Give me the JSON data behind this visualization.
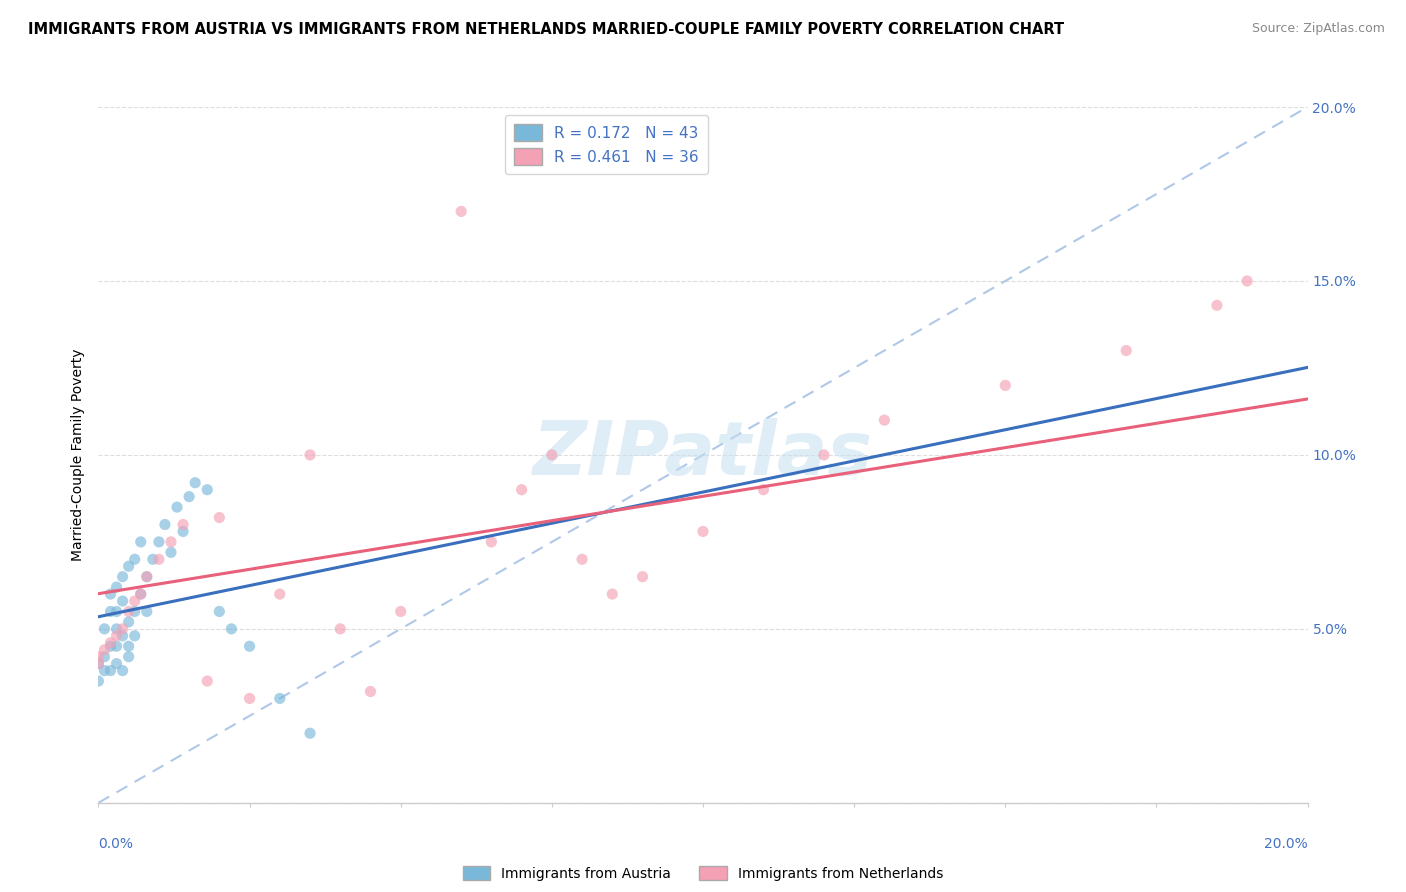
{
  "title": "IMMIGRANTS FROM AUSTRIA VS IMMIGRANTS FROM NETHERLANDS MARRIED-COUPLE FAMILY POVERTY CORRELATION CHART",
  "source": "Source: ZipAtlas.com",
  "ylabel": "Married-Couple Family Poverty",
  "xlim": [
    0.0,
    0.2
  ],
  "ylim": [
    0.0,
    0.2
  ],
  "watermark": "ZIPatlas",
  "R_austria": 0.172,
  "N_austria": 43,
  "R_netherlands": 0.461,
  "N_netherlands": 36,
  "color_austria": "#7ab8d9",
  "color_netherlands": "#f4a0b5",
  "trendline_austria_color": "#3a6fbd",
  "trendline_netherlands_color": "#e8607a",
  "legend_text_blue": "#4472c4",
  "axis_label_color": "#4472c4",
  "austria_x": [
    0.0,
    0.0,
    0.001,
    0.001,
    0.001,
    0.002,
    0.002,
    0.002,
    0.002,
    0.003,
    0.003,
    0.003,
    0.003,
    0.003,
    0.004,
    0.004,
    0.004,
    0.004,
    0.005,
    0.005,
    0.005,
    0.005,
    0.006,
    0.006,
    0.006,
    0.007,
    0.007,
    0.008,
    0.008,
    0.009,
    0.01,
    0.011,
    0.012,
    0.013,
    0.014,
    0.015,
    0.016,
    0.018,
    0.02,
    0.022,
    0.025,
    0.03,
    0.035
  ],
  "austria_y": [
    0.04,
    0.035,
    0.042,
    0.05,
    0.038,
    0.045,
    0.055,
    0.038,
    0.06,
    0.04,
    0.05,
    0.062,
    0.045,
    0.055,
    0.048,
    0.058,
    0.038,
    0.065,
    0.042,
    0.052,
    0.068,
    0.045,
    0.055,
    0.07,
    0.048,
    0.06,
    0.075,
    0.065,
    0.055,
    0.07,
    0.075,
    0.08,
    0.072,
    0.085,
    0.078,
    0.088,
    0.092,
    0.09,
    0.055,
    0.05,
    0.045,
    0.03,
    0.02
  ],
  "netherlands_x": [
    0.0,
    0.0,
    0.001,
    0.002,
    0.003,
    0.004,
    0.005,
    0.006,
    0.007,
    0.008,
    0.01,
    0.012,
    0.014,
    0.018,
    0.02,
    0.025,
    0.03,
    0.035,
    0.04,
    0.045,
    0.05,
    0.06,
    0.065,
    0.07,
    0.075,
    0.08,
    0.085,
    0.09,
    0.1,
    0.11,
    0.12,
    0.13,
    0.15,
    0.17,
    0.185,
    0.19
  ],
  "netherlands_y": [
    0.04,
    0.042,
    0.044,
    0.046,
    0.048,
    0.05,
    0.055,
    0.058,
    0.06,
    0.065,
    0.07,
    0.075,
    0.08,
    0.035,
    0.082,
    0.03,
    0.06,
    0.1,
    0.05,
    0.032,
    0.055,
    0.17,
    0.075,
    0.09,
    0.1,
    0.07,
    0.06,
    0.065,
    0.078,
    0.09,
    0.1,
    0.11,
    0.12,
    0.13,
    0.143,
    0.15
  ]
}
